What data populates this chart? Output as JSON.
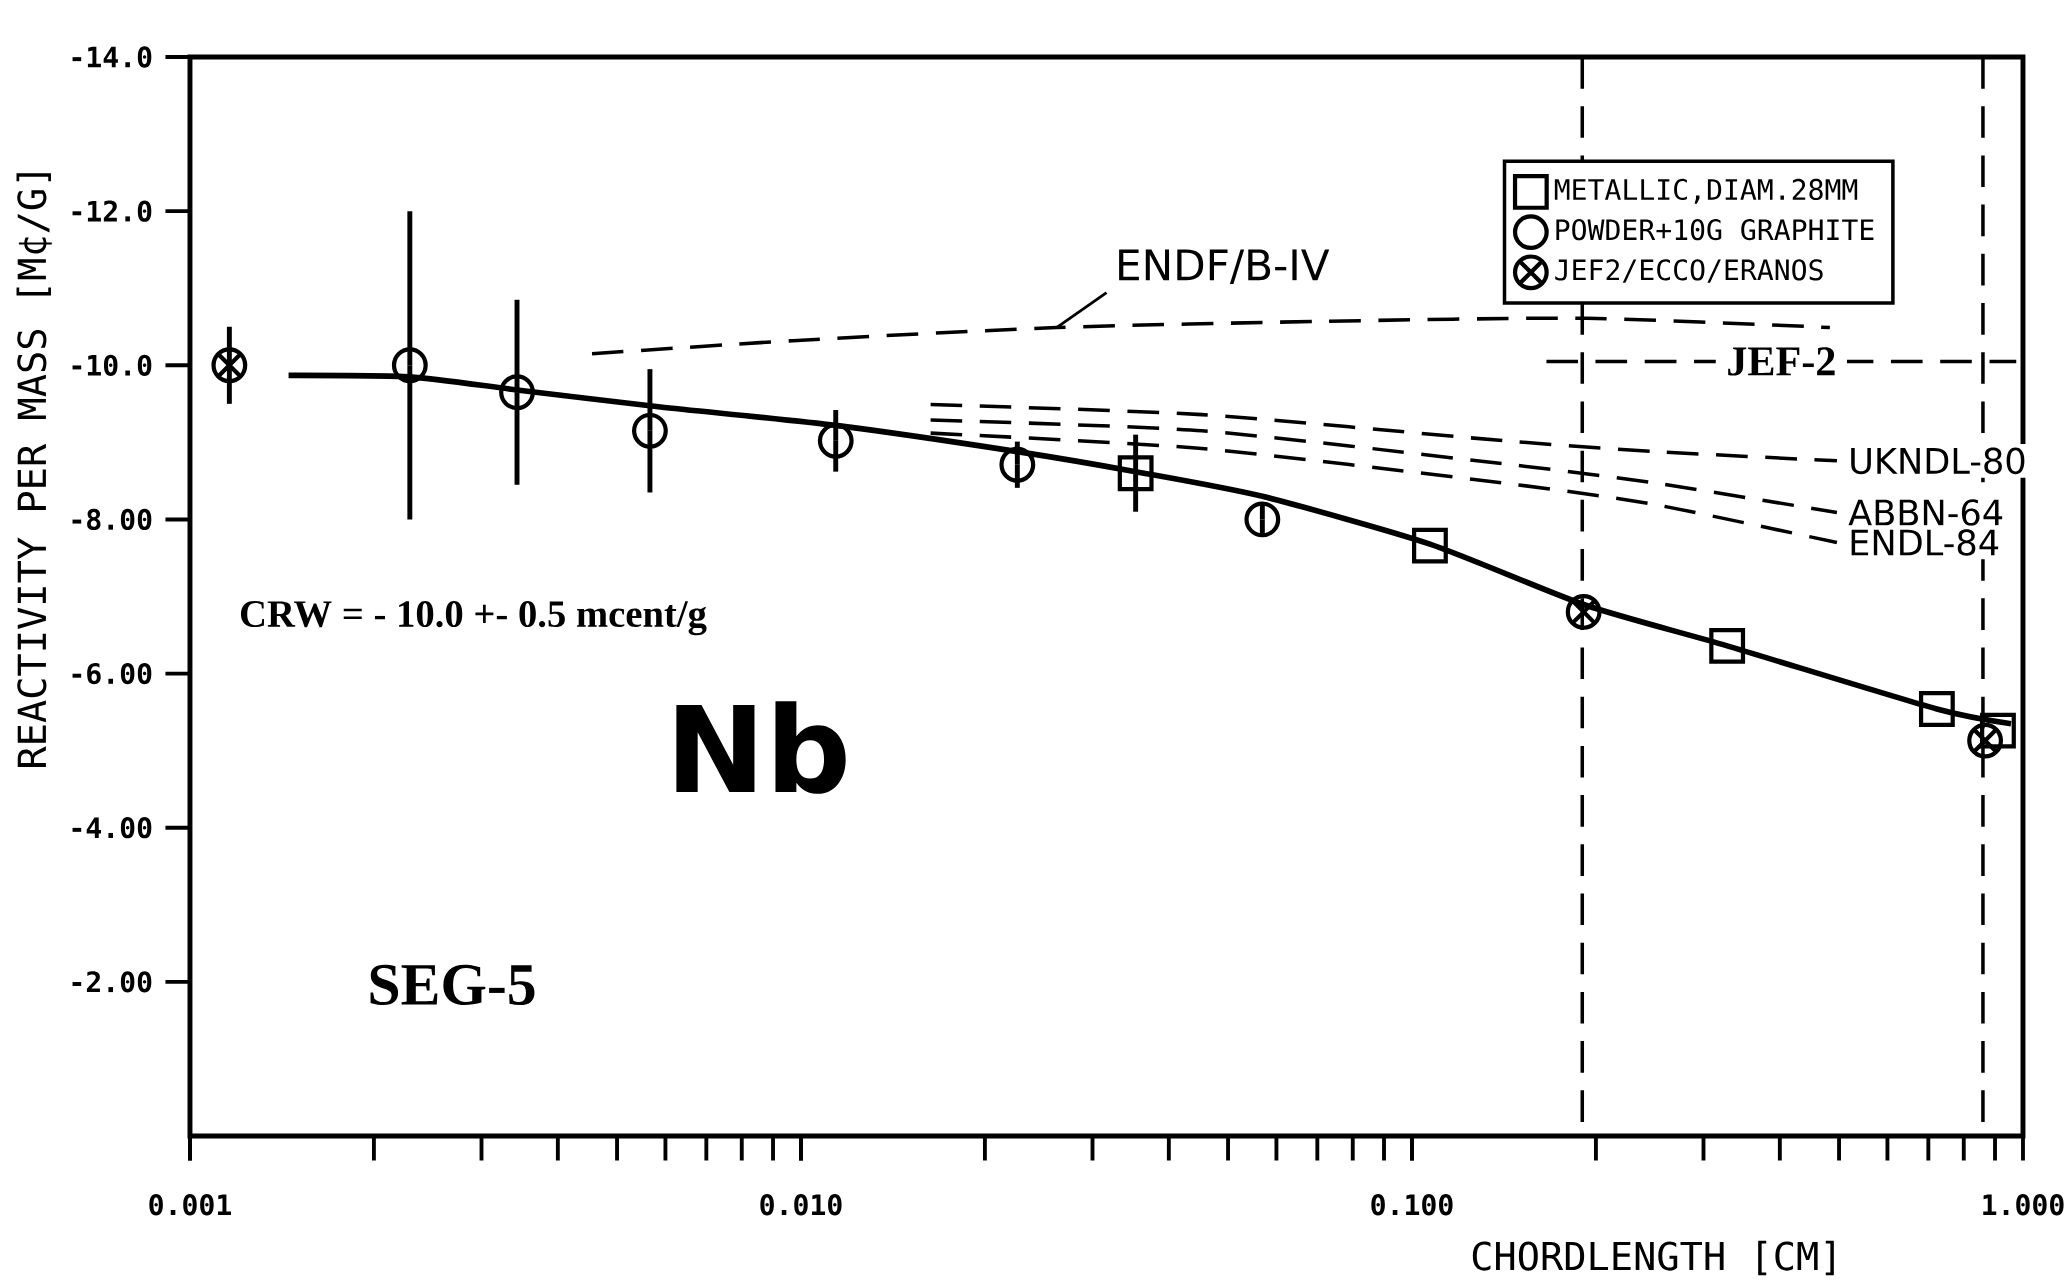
{
  "chart_data": {
    "type": "scatter",
    "xlabel": "CHORDLENGTH [CM]",
    "ylabel": "REACTIVITY PER MASS [M¢/G]",
    "log": "x",
    "grid": false,
    "legend": "top right",
    "xlim": [
      0.001,
      1.0
    ],
    "ylim": [
      0,
      -14
    ],
    "xticks": [
      {
        "value": 0.001,
        "label": "0.001"
      },
      {
        "value": 0.01,
        "label": "0.010"
      },
      {
        "value": 0.1,
        "label": "0.100"
      },
      {
        "value": 1.0,
        "label": "1.000"
      }
    ],
    "yticks": [
      {
        "value": -14,
        "label": "-14.0"
      },
      {
        "value": -12,
        "label": "-12.0"
      },
      {
        "value": -10,
        "label": "-10.0"
      },
      {
        "value": -8,
        "label": "-8.00"
      },
      {
        "value": -6,
        "label": "-6.00"
      },
      {
        "value": -4,
        "label": "-4.00"
      },
      {
        "value": -2,
        "label": "-2.00"
      }
    ],
    "ref_lines": [
      {
        "axis": "x",
        "value": 0.19,
        "line_style": "dashed",
        "color": "#000000"
      },
      {
        "axis": "x",
        "value": 0.86,
        "line_style": "dashed",
        "color": "#000000"
      }
    ],
    "annotations": [
      "CRW = - 10.0 +- 0.5 mcent/g",
      "Nb",
      "SEG-5"
    ],
    "series": [
      {
        "type": "line",
        "color": "#000000",
        "line_style": "solid",
        "marker": "none",
        "x": [
          0.00145,
          0.00229,
          0.00343,
          0.00589,
          0.0114,
          0.0226,
          0.0353,
          0.0569,
          0.107,
          0.192,
          0.328,
          0.723,
          0.956
        ],
        "values": [
          -9.87,
          -9.85,
          -9.68,
          -9.46,
          -9.22,
          -8.88,
          -8.62,
          -8.3,
          -7.68,
          -6.89,
          -6.36,
          -5.54,
          -5.35
        ]
      },
      {
        "type": "line",
        "name": "ENDF/B-IV",
        "color": "#000000",
        "line_style": "dashed",
        "marker": "none",
        "x": [
          0.00455,
          0.0097,
          0.0262,
          0.071,
          0.193,
          0.483
        ],
        "values": [
          -10.15,
          -10.32,
          -10.49,
          -10.57,
          -10.61,
          -10.49
        ]
      },
      {
        "type": "line",
        "name": "UKNDL-80",
        "color": "#000000",
        "line_style": "dashed",
        "marker": "none",
        "x": [
          0.0163,
          0.0453,
          0.142,
          0.251,
          0.496
        ],
        "values": [
          -9.49,
          -9.36,
          -9.02,
          -8.88,
          -8.76
        ]
      },
      {
        "type": "line",
        "name": "ABBN-64",
        "color": "#000000",
        "line_style": "dashed",
        "marker": "none",
        "x": [
          0.0163,
          0.0453,
          0.142,
          0.251,
          0.496
        ],
        "values": [
          -9.29,
          -9.15,
          -8.72,
          -8.47,
          -8.09
        ]
      },
      {
        "type": "line",
        "name": "ENDL-84",
        "color": "#000000",
        "line_style": "dashed",
        "marker": "none",
        "x": [
          0.0163,
          0.0453,
          0.142,
          0.251,
          0.496
        ],
        "values": [
          -9.12,
          -8.92,
          -8.47,
          -8.19,
          -7.7
        ]
      },
      {
        "type": "line",
        "name": "JEF-2",
        "color": "#000000",
        "line_style": "dashed",
        "marker": "none",
        "x": [
          0.166,
          0.975
        ],
        "values": [
          -10.05,
          -10.05
        ]
      },
      {
        "name": "METALLIC,DIAM.28MM",
        "color": "#000000",
        "marker": "square",
        "x": [
          0.0353,
          0.107,
          0.328,
          0.723,
          0.91
        ],
        "values": [
          -8.6,
          -7.66,
          -6.36,
          -5.54,
          -5.26
        ],
        "errors": [
          0.5,
          null,
          null,
          null,
          null
        ]
      },
      {
        "name": "POWDER+10G GRAPHITE",
        "color": "#000000",
        "marker": "circle",
        "x": [
          0.00229,
          0.00343,
          0.00566,
          0.0114,
          0.0226,
          0.0569
        ],
        "values": [
          -10.0,
          -9.65,
          -9.15,
          -9.02,
          -8.71,
          -8.0
        ],
        "errors": [
          2.0,
          1.2,
          0.8,
          0.4,
          0.3,
          0.2
        ]
      },
      {
        "name": "JEF2/ECCO/ERANOS",
        "color": "#000000",
        "marker": "cross",
        "x": [
          0.00116,
          0.191,
          0.867
        ],
        "values": [
          -10.0,
          -6.8,
          -5.13
        ],
        "errors": [
          0.5,
          null,
          null
        ]
      }
    ]
  }
}
